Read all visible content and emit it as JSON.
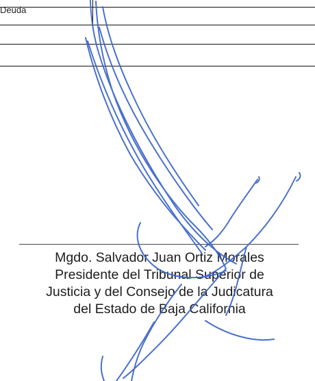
{
  "table": {
    "row_label": "Deuda"
  },
  "signature_block": {
    "line1": "Mgdo. Salvador Juan Ortiz Morales",
    "line2": "Presidente del Tribunal Superior de",
    "line3": "Justicia y del Consejo de la Judicatura",
    "line4": "del Estado de Baja California"
  },
  "colors": {
    "ink": "#3a64c8",
    "text": "#1c1c1c",
    "rule": "#111111"
  }
}
